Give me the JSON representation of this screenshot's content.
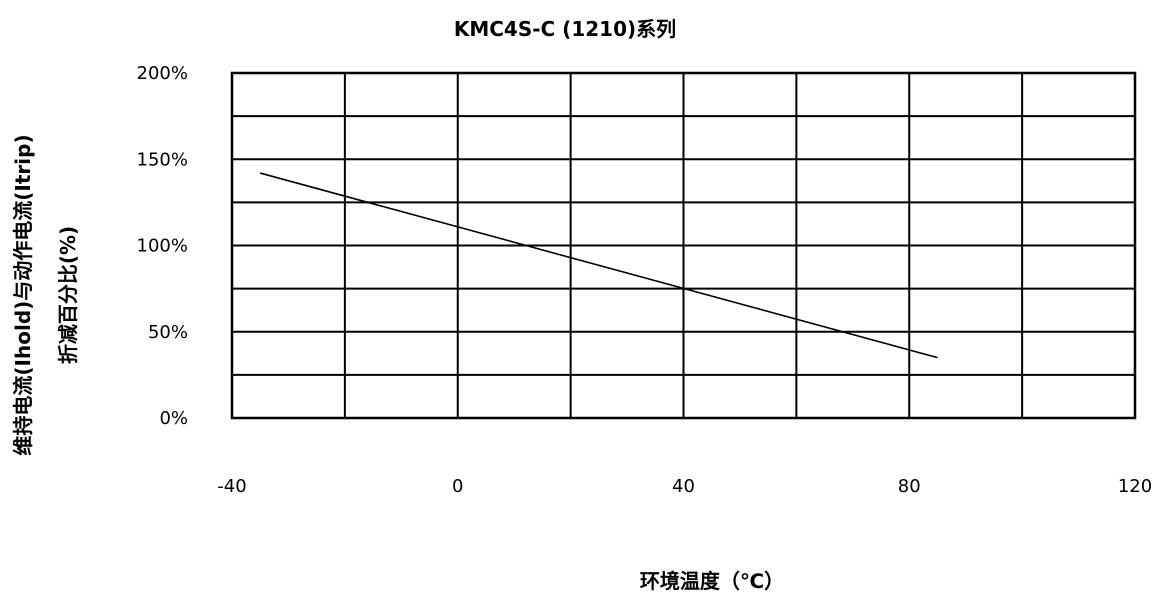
{
  "chart_data": {
    "type": "line",
    "title": "KMC4S-C (1210)系列",
    "xlabel": "环境温度（℃）",
    "ylabel_lines": [
      "维持电流(Ihold)与动作电流(Itrip)",
      "折减百分比(%)"
    ],
    "xlim": [
      -40,
      120
    ],
    "ylim": [
      0,
      200
    ],
    "x_ticks": [
      -40,
      0,
      40,
      80,
      120
    ],
    "x_tick_labels": [
      "-40",
      "0",
      "40",
      "80",
      "120"
    ],
    "y_ticks": [
      0,
      50,
      100,
      150,
      200
    ],
    "y_tick_labels": [
      "0%",
      "50%",
      "100%",
      "150%",
      "200%"
    ],
    "grid": true,
    "grid_x_step": 20,
    "grid_y_step": 25,
    "series": [
      {
        "x": [
          -35,
          85
        ],
        "y": [
          142,
          35
        ],
        "color": "#000000"
      }
    ]
  }
}
